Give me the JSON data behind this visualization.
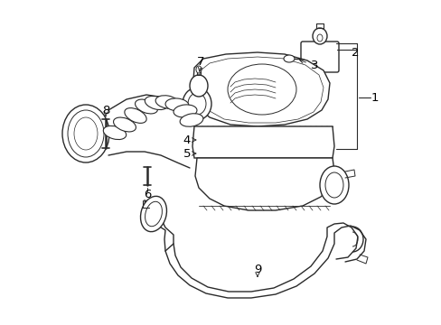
{
  "bg_color": "#ffffff",
  "line_color": "#2a2a2a",
  "label_color": "#000000",
  "fig_width": 4.89,
  "fig_height": 3.6,
  "dpi": 100
}
